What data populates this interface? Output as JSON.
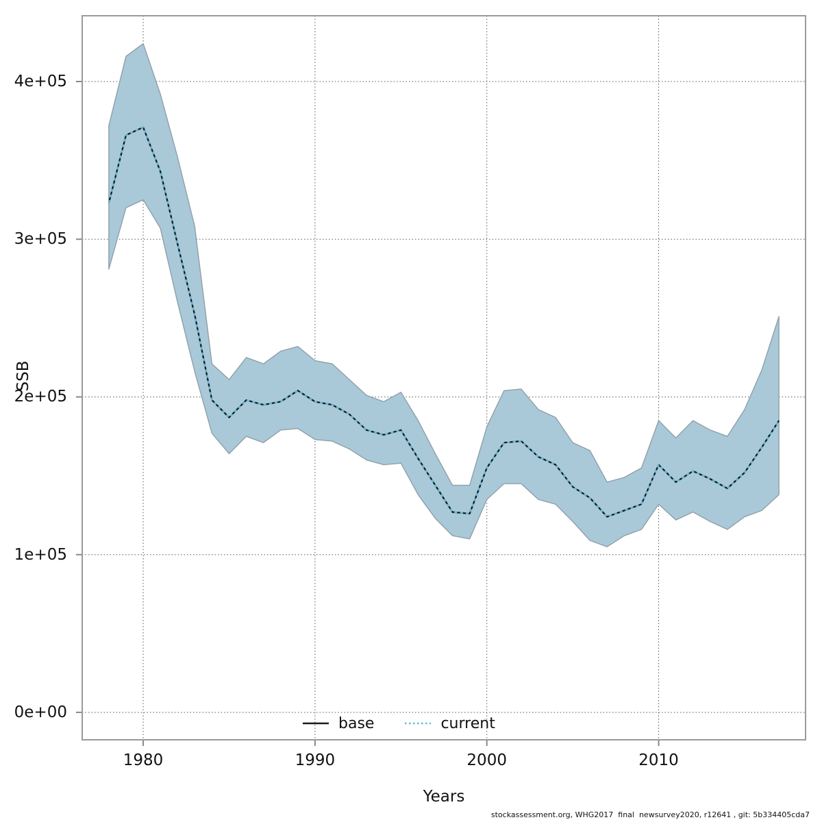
{
  "axes": {
    "ylabel": "SSB",
    "xlabel": "Years",
    "y_ticks": [
      "0e+00",
      "1e+05",
      "2e+05",
      "3e+05",
      "4e+05"
    ],
    "y_tick_values": [
      0,
      100000,
      200000,
      300000,
      400000
    ],
    "x_ticks": [
      "1980",
      "1990",
      "2000",
      "2010"
    ],
    "x_tick_values": [
      1980,
      1990,
      2000,
      2010
    ]
  },
  "legend": {
    "base_label": "base",
    "current_label": "current"
  },
  "caption": "stockassessment.org, WHG2017  final  newsurvey2020, r12641 , git: 5b334405cda7",
  "colors": {
    "band_fill": "#a9c9d9",
    "band_edge": "#8f9fa8",
    "base_line": "#1a1a1a",
    "current_line": "#5fbcdf",
    "border": "#9a9a9a",
    "grid": "#555555",
    "tick": "#888888"
  },
  "chart_data": {
    "type": "line",
    "title": "",
    "xlabel": "Years",
    "ylabel": "SSB",
    "xlim": [
      1976.45,
      2018.55
    ],
    "ylim": [
      -17400,
      441700
    ],
    "grid": true,
    "legend_position": "bottom-center-inside",
    "x": [
      1978,
      1979,
      1980,
      1981,
      1982,
      1983,
      1984,
      1985,
      1986,
      1987,
      1988,
      1989,
      1990,
      1991,
      1992,
      1993,
      1994,
      1995,
      1996,
      1997,
      1998,
      1999,
      2000,
      2001,
      2002,
      2003,
      2004,
      2005,
      2006,
      2007,
      2008,
      2009,
      2010,
      2011,
      2012,
      2013,
      2014,
      2015,
      2016,
      2017
    ],
    "series": [
      {
        "name": "current",
        "style": "dotted",
        "values": [
          323000,
          366000,
          371000,
          343000,
          297000,
          252000,
          198000,
          187000,
          198000,
          195000,
          197000,
          204000,
          197000,
          195000,
          189000,
          179000,
          176000,
          179000,
          161000,
          144000,
          127000,
          126000,
          155000,
          171000,
          172000,
          162000,
          157000,
          143000,
          136000,
          124000,
          128000,
          132000,
          157000,
          146000,
          153000,
          148000,
          142000,
          152000,
          168000,
          185000
        ]
      },
      {
        "name": "current_lower_ci",
        "style": "band-lower",
        "values": [
          281000,
          320000,
          325000,
          307000,
          260000,
          216000,
          177000,
          164000,
          175000,
          171000,
          179000,
          180000,
          173000,
          172000,
          167000,
          160000,
          157000,
          158000,
          138000,
          123000,
          112000,
          110000,
          135000,
          145000,
          145000,
          135000,
          132000,
          121000,
          109000,
          105000,
          112000,
          116000,
          132000,
          122000,
          127000,
          121000,
          116000,
          124000,
          128000,
          138000
        ]
      },
      {
        "name": "current_upper_ci",
        "style": "band-upper",
        "values": [
          372000,
          416000,
          424000,
          392000,
          352000,
          308000,
          221000,
          211000,
          225000,
          221000,
          229000,
          232000,
          223000,
          221000,
          211000,
          201000,
          197000,
          203000,
          185000,
          164000,
          144000,
          144000,
          181000,
          204000,
          205000,
          192000,
          187000,
          171000,
          166000,
          146000,
          149000,
          155000,
          185000,
          174000,
          185000,
          179000,
          175000,
          192000,
          217000,
          251000
        ]
      },
      {
        "name": "base",
        "style": "solid",
        "values": [
          323000,
          366000,
          371000,
          343000,
          297000,
          252000,
          198000,
          187000,
          198000,
          195000,
          197000,
          204000,
          197000,
          195000,
          189000,
          179000,
          176000,
          179000,
          161000,
          144000,
          127000,
          126000,
          155000,
          171000,
          172000,
          162000,
          157000,
          143000,
          136000,
          124000,
          128000,
          132000,
          157000,
          146000,
          153000,
          148000,
          142000,
          152000,
          168000,
          185000
        ]
      }
    ]
  }
}
